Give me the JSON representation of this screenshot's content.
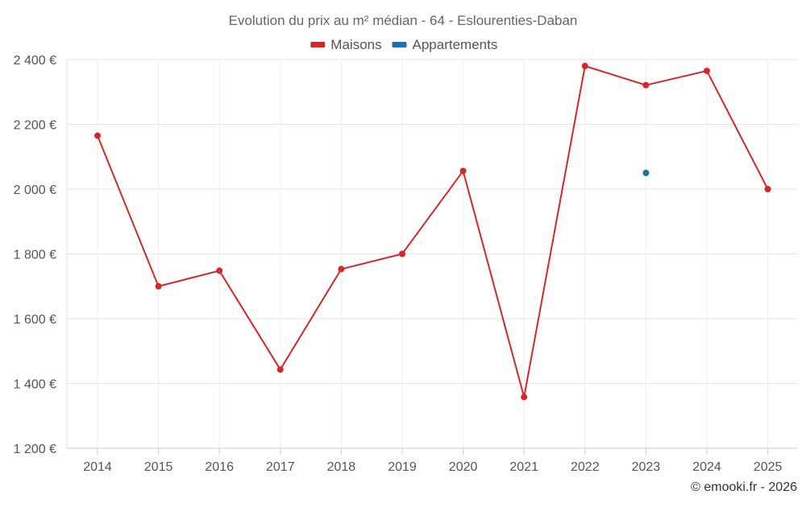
{
  "chart_data": {
    "type": "line",
    "title": "Evolution du prix au m² médian - 64 - Eslourenties-Daban",
    "x": [
      "2014",
      "2015",
      "2016",
      "2017",
      "2018",
      "2019",
      "2020",
      "2021",
      "2022",
      "2023",
      "2024",
      "2025"
    ],
    "series": [
      {
        "name": "Maisons",
        "color": "#d62728",
        "values": [
          2165,
          1700,
          1748,
          1443,
          1753,
          1800,
          2056,
          1358,
          2380,
          2321,
          2365,
          2000
        ]
      },
      {
        "name": "Appartements",
        "color": "#1f6fa8",
        "values": [
          null,
          null,
          null,
          null,
          null,
          null,
          null,
          null,
          null,
          2050,
          null,
          null
        ]
      }
    ],
    "ylim": [
      1200,
      2400
    ],
    "yticks": [
      1200,
      1400,
      1600,
      1800,
      2000,
      2200,
      2400
    ],
    "ytick_labels": [
      "1 200 €",
      "1 400 €",
      "1 600 €",
      "1 800 €",
      "2 000 €",
      "2 200 €",
      "2 400 €"
    ],
    "xlabel": "",
    "ylabel": "",
    "grid": true,
    "legend_position": "top-center"
  },
  "credit": "© emooki.fr - 2026"
}
